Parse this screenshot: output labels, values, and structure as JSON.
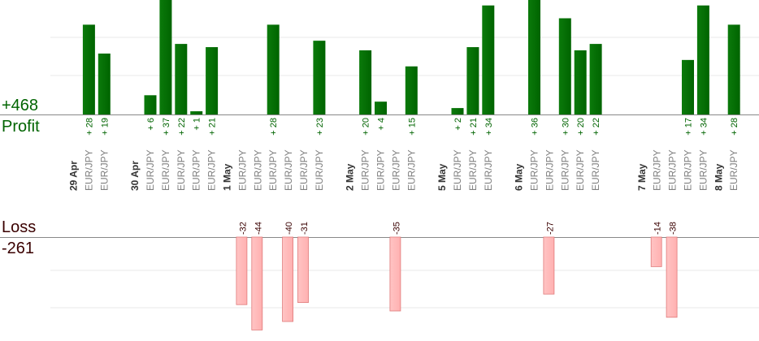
{
  "summary": {
    "profit_total": "+468",
    "profit_label": "Profit",
    "loss_label": "Loss",
    "loss_total": "-261"
  },
  "colors": {
    "profit": "#006400",
    "profit_text": "#006400",
    "loss": "#ffb0b0",
    "loss_border": "#e07a7a",
    "loss_text": "#3a0000",
    "grid": "#e8e8e8",
    "baseline": "#888888",
    "pair_text": "#808080",
    "date_text": "#333333"
  },
  "chart_data": {
    "type": "bar",
    "title": "",
    "xlabel": "",
    "ylabel": "",
    "profit_total": 468,
    "loss_total": -261,
    "grid": true,
    "dates": [
      {
        "label": "29 Apr",
        "slot": 0
      },
      {
        "label": "30 Apr",
        "slot": 4
      },
      {
        "label": "1 May",
        "slot": 10
      },
      {
        "label": "2 May",
        "slot": 18
      },
      {
        "label": "5 May",
        "slot": 24
      },
      {
        "label": "6 May",
        "slot": 29
      },
      {
        "label": "7 May",
        "slot": 37
      },
      {
        "label": "8 May",
        "slot": 42
      }
    ],
    "trades": [
      {
        "slot": 1,
        "pair": "EUR/JPY",
        "value": 28,
        "label": "+28"
      },
      {
        "slot": 2,
        "pair": "EUR/JPY",
        "value": 19,
        "label": "+19"
      },
      {
        "slot": 5,
        "pair": "EUR/JPY",
        "value": 6,
        "label": "+6"
      },
      {
        "slot": 6,
        "pair": "EUR/JPY",
        "value": 37,
        "label": "+37"
      },
      {
        "slot": 7,
        "pair": "EUR/JPY",
        "value": 22,
        "label": "+22"
      },
      {
        "slot": 8,
        "pair": "EUR/JPY",
        "value": 1,
        "label": "+1"
      },
      {
        "slot": 9,
        "pair": "EUR/JPY",
        "value": 21,
        "label": "+21"
      },
      {
        "slot": 11,
        "pair": "EUR/JPY",
        "value": -32,
        "label": "-32"
      },
      {
        "slot": 12,
        "pair": "EUR/JPY",
        "value": -44,
        "label": "-44"
      },
      {
        "slot": 13,
        "pair": "EUR/JPY",
        "value": 28,
        "label": "+28"
      },
      {
        "slot": 14,
        "pair": "EUR/JPY",
        "value": -40,
        "label": "-40"
      },
      {
        "slot": 15,
        "pair": "EUR/JPY",
        "value": -31,
        "label": "-31"
      },
      {
        "slot": 16,
        "pair": "EUR/JPY",
        "value": 23,
        "label": "+23"
      },
      {
        "slot": 19,
        "pair": "EUR/JPY",
        "value": 20,
        "label": "+20"
      },
      {
        "slot": 20,
        "pair": "EUR/JPY",
        "value": 4,
        "label": "+4"
      },
      {
        "slot": 21,
        "pair": "EUR/JPY",
        "value": -35,
        "label": "-35"
      },
      {
        "slot": 22,
        "pair": "EUR/JPY",
        "value": 15,
        "label": "+15"
      },
      {
        "slot": 25,
        "pair": "EUR/JPY",
        "value": 2,
        "label": "+2"
      },
      {
        "slot": 26,
        "pair": "EUR/JPY",
        "value": 21,
        "label": "+21"
      },
      {
        "slot": 27,
        "pair": "EUR/JPY",
        "value": 34,
        "label": "+34"
      },
      {
        "slot": 30,
        "pair": "EUR/JPY",
        "value": 36,
        "label": "+36"
      },
      {
        "slot": 31,
        "pair": "EUR/JPY",
        "value": -27,
        "label": "-27"
      },
      {
        "slot": 32,
        "pair": "EUR/JPY",
        "value": 30,
        "label": "+30"
      },
      {
        "slot": 33,
        "pair": "EUR/JPY",
        "value": 20,
        "label": "+20"
      },
      {
        "slot": 34,
        "pair": "EUR/JPY",
        "value": 22,
        "label": "+22"
      },
      {
        "slot": 38,
        "pair": "EUR/JPY",
        "value": -14,
        "label": "-14"
      },
      {
        "slot": 39,
        "pair": "EUR/JPY",
        "value": -38,
        "label": "-38"
      },
      {
        "slot": 40,
        "pair": "EUR/JPY",
        "value": 17,
        "label": "+17"
      },
      {
        "slot": 41,
        "pair": "EUR/JPY",
        "value": 34,
        "label": "+34"
      },
      {
        "slot": 43,
        "pair": "EUR/JPY",
        "value": 28,
        "label": "+28"
      }
    ]
  }
}
